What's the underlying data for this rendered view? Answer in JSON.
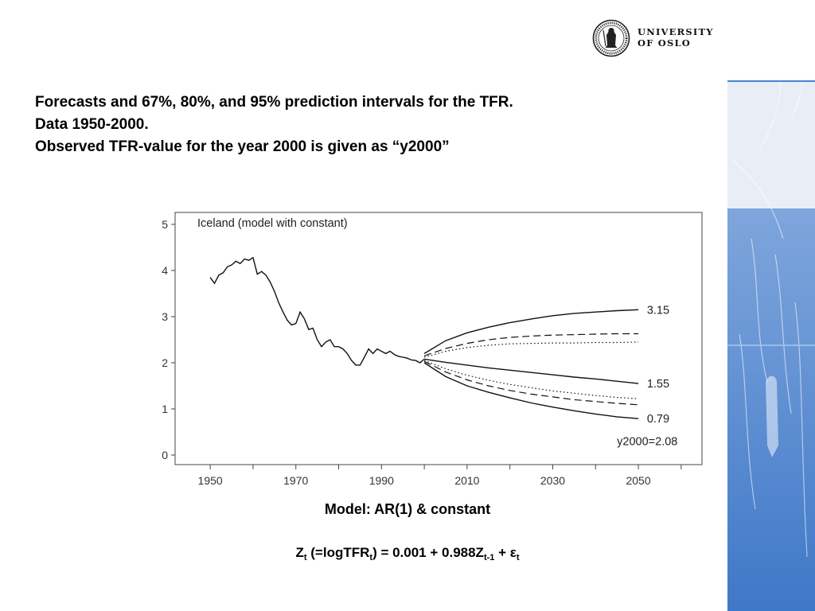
{
  "header": {
    "logo_text": [
      "UNIVERSITY",
      "OF OSLO"
    ]
  },
  "title_lines": [
    "Forecasts and 67%, 80%, and 95% prediction intervals for the TFR.",
    "Data 1950-2000.",
    "Observed TFR-value for the year 2000 is given as “y2000”"
  ],
  "chart_data": {
    "type": "line",
    "title": "Iceland (model with constant)",
    "xlabel": "",
    "ylabel": "",
    "xlim": [
      1947,
      2063
    ],
    "ylim": [
      0,
      5
    ],
    "xticks": [
      1950,
      1970,
      1990,
      2010,
      2030,
      2050
    ],
    "yticks": [
      0,
      1,
      2,
      3,
      4,
      5
    ],
    "series": [
      {
        "style": "solid",
        "x": [
          1950,
          1951,
          1952,
          1953,
          1954,
          1955,
          1956,
          1957,
          1958,
          1959,
          1960,
          1961,
          1962,
          1963,
          1964,
          1965,
          1966,
          1967,
          1968,
          1969,
          1970,
          1971,
          1972,
          1973,
          1974,
          1975,
          1976,
          1977,
          1978,
          1979,
          1980,
          1981,
          1982,
          1983,
          1984,
          1985,
          1986,
          1987,
          1988,
          1989,
          1990,
          1991,
          1992,
          1993,
          1994,
          1995,
          1996,
          1997,
          1998,
          1999,
          2000
        ],
        "y": [
          3.85,
          3.72,
          3.9,
          3.95,
          4.08,
          4.12,
          4.2,
          4.15,
          4.25,
          4.22,
          4.28,
          3.92,
          3.98,
          3.9,
          3.75,
          3.55,
          3.3,
          3.1,
          2.92,
          2.82,
          2.85,
          3.1,
          2.95,
          2.72,
          2.75,
          2.5,
          2.35,
          2.45,
          2.5,
          2.35,
          2.35,
          2.3,
          2.2,
          2.05,
          1.95,
          1.95,
          2.12,
          2.3,
          2.2,
          2.3,
          2.25,
          2.2,
          2.25,
          2.18,
          2.14,
          2.12,
          2.1,
          2.06,
          2.05,
          2.0,
          2.08
        ]
      },
      {
        "style": "solid",
        "x": [
          2000,
          2005,
          2010,
          2015,
          2020,
          2025,
          2030,
          2035,
          2040,
          2045,
          2050
        ],
        "y": [
          2.08,
          2.01,
          1.95,
          1.89,
          1.84,
          1.79,
          1.74,
          1.69,
          1.65,
          1.6,
          1.55
        ]
      },
      {
        "style": "solid",
        "x": [
          2000,
          2005,
          2010,
          2015,
          2020,
          2025,
          2030,
          2035,
          2040,
          2045,
          2050
        ],
        "y": [
          2.2,
          2.48,
          2.65,
          2.77,
          2.87,
          2.95,
          3.02,
          3.07,
          3.1,
          3.13,
          3.15
        ]
      },
      {
        "style": "solid",
        "x": [
          2000,
          2005,
          2010,
          2015,
          2020,
          2025,
          2030,
          2035,
          2040,
          2045,
          2050
        ],
        "y": [
          2.0,
          1.7,
          1.5,
          1.36,
          1.24,
          1.13,
          1.04,
          0.96,
          0.89,
          0.83,
          0.79
        ]
      },
      {
        "style": "dashed",
        "x": [
          2000,
          2005,
          2010,
          2015,
          2020,
          2025,
          2030,
          2035,
          2040,
          2045,
          2050
        ],
        "y": [
          2.15,
          2.31,
          2.42,
          2.5,
          2.55,
          2.58,
          2.6,
          2.61,
          2.62,
          2.63,
          2.63
        ]
      },
      {
        "style": "dashed",
        "x": [
          2000,
          2005,
          2010,
          2015,
          2020,
          2025,
          2030,
          2035,
          2040,
          2045,
          2050
        ],
        "y": [
          2.03,
          1.8,
          1.63,
          1.5,
          1.4,
          1.32,
          1.26,
          1.2,
          1.16,
          1.12,
          1.09
        ]
      },
      {
        "style": "dotted",
        "x": [
          2000,
          2005,
          2010,
          2015,
          2020,
          2025,
          2030,
          2035,
          2040,
          2045,
          2050
        ],
        "y": [
          2.12,
          2.25,
          2.33,
          2.38,
          2.41,
          2.42,
          2.43,
          2.43,
          2.44,
          2.44,
          2.45
        ]
      },
      {
        "style": "dotted",
        "x": [
          2000,
          2005,
          2010,
          2015,
          2020,
          2025,
          2030,
          2035,
          2040,
          2045,
          2050
        ],
        "y": [
          2.05,
          1.87,
          1.73,
          1.62,
          1.53,
          1.46,
          1.39,
          1.34,
          1.29,
          1.25,
          1.22
        ]
      }
    ],
    "annotations": [
      {
        "text": "3.15",
        "x": 2052,
        "y": 3.15
      },
      {
        "text": "1.55",
        "x": 2052,
        "y": 1.55
      },
      {
        "text": "0.79",
        "x": 2052,
        "y": 0.79
      },
      {
        "text": "y2000=2.08",
        "x": 2045,
        "y": 0.3
      }
    ],
    "grid": false,
    "legend": "none"
  },
  "caption": "Model: AR(1) & constant",
  "formula": {
    "z": "Z",
    "sub_t": "t",
    "mid": " (=logTFR",
    "close": ") = 0.001 + 0.988Z",
    "sub_t1": "t-1",
    "plus": " + ε"
  }
}
